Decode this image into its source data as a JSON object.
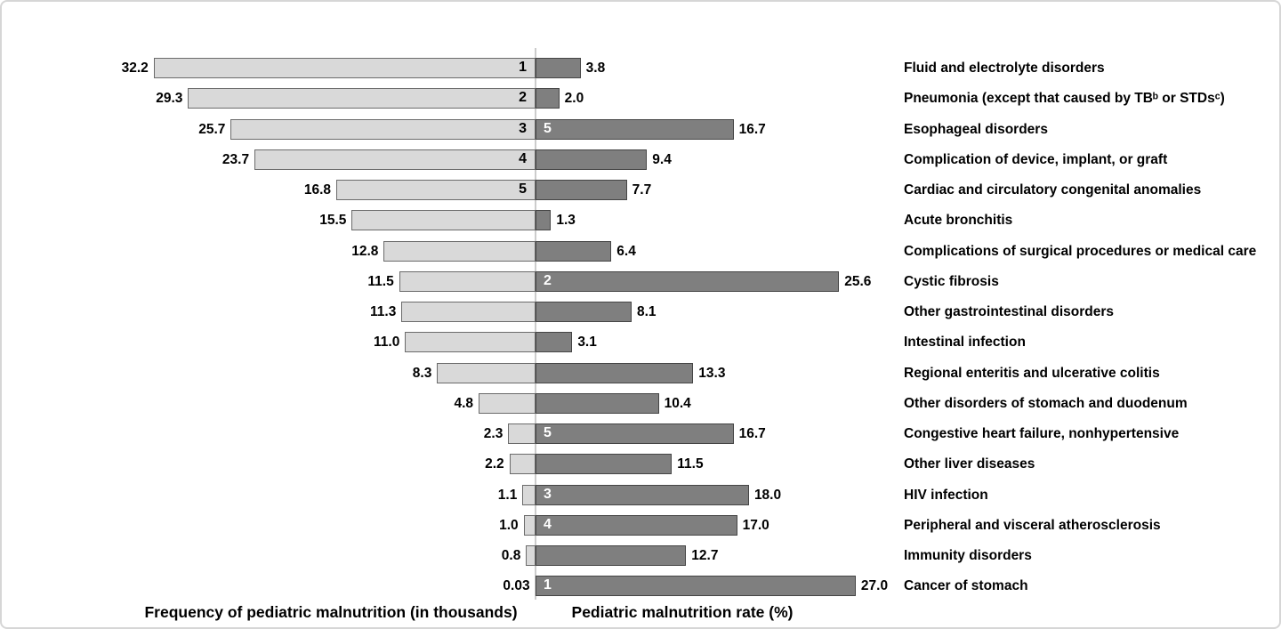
{
  "chart_data": {
    "type": "bar",
    "variant": "bidirectional-horizontal-tornado",
    "left_axis_label": "Frequency of pediatric malnutrition (in thousands)",
    "right_axis_label": "Pediatric malnutrition rate (%)",
    "legend_position": "none",
    "grid": false,
    "categories": [
      "Fluid and electrolyte disorders",
      "Pneumonia (except that caused by TBᵇ or STDsᶜ)",
      "Esophageal disorders",
      "Complication of device, implant, or graft",
      "Cardiac and circulatory congenital anomalies",
      "Acute bronchitis",
      "Complications of surgical procedures or medical care",
      "Cystic fibrosis",
      "Other gastrointestinal disorders",
      "Intestinal infection",
      "Regional enteritis and ulcerative colitis",
      "Other disorders of stomach and duodenum",
      "Congestive heart failure, nonhypertensive",
      "Other liver diseases",
      "HIV infection",
      "Peripheral and visceral atherosclerosis",
      "Immunity disorders",
      "Cancer of stomach"
    ],
    "series": [
      {
        "name": "Frequency of pediatric malnutrition (in thousands)",
        "side": "left",
        "values": [
          32.2,
          29.3,
          25.7,
          23.7,
          16.8,
          15.5,
          12.8,
          11.5,
          11.3,
          11.0,
          8.3,
          4.8,
          2.3,
          2.2,
          1.1,
          1.0,
          0.8,
          0.03
        ],
        "labels": [
          "32.2",
          "29.3",
          "25.7",
          "23.7",
          "16.8",
          "15.5",
          "12.8",
          "11.5",
          "11.3",
          "11.0",
          "8.3",
          "4.8",
          "2.3",
          "2.2",
          "1.1",
          "1.0",
          "0.8",
          "0.03"
        ],
        "ranks": [
          "1",
          "2",
          "3",
          "4",
          "5",
          "",
          "",
          "",
          "",
          "",
          "",
          "",
          "",
          "",
          "",
          "",
          "",
          ""
        ]
      },
      {
        "name": "Pediatric malnutrition rate (%)",
        "side": "right",
        "values": [
          3.8,
          2.0,
          16.7,
          9.4,
          7.7,
          1.3,
          6.4,
          25.6,
          8.1,
          3.1,
          13.3,
          10.4,
          16.7,
          11.5,
          18.0,
          17.0,
          12.7,
          27.0
        ],
        "labels": [
          "3.8",
          "2.0",
          "16.7",
          "9.4",
          "7.7",
          "1.3",
          "6.4",
          "25.6",
          "8.1",
          "3.1",
          "13.3",
          "10.4",
          "16.7",
          "11.5",
          "18.0",
          "17.0",
          "12.7",
          "27.0"
        ],
        "ranks": [
          "",
          "",
          "5",
          "",
          "",
          "",
          "",
          "2",
          "",
          "",
          "",
          "",
          "5",
          "",
          "3",
          "4",
          "",
          "1"
        ]
      }
    ],
    "colors": {
      "left_bar_fill": "#d9d9d9",
      "left_bar_border": "#6b6b6b",
      "right_bar_fill": "#7f7f7f",
      "right_bar_border": "#454545",
      "rank_left_color": "#000000",
      "rank_right_color": "#ffffff",
      "centerline": "#cccccc",
      "text": "#000000"
    }
  }
}
